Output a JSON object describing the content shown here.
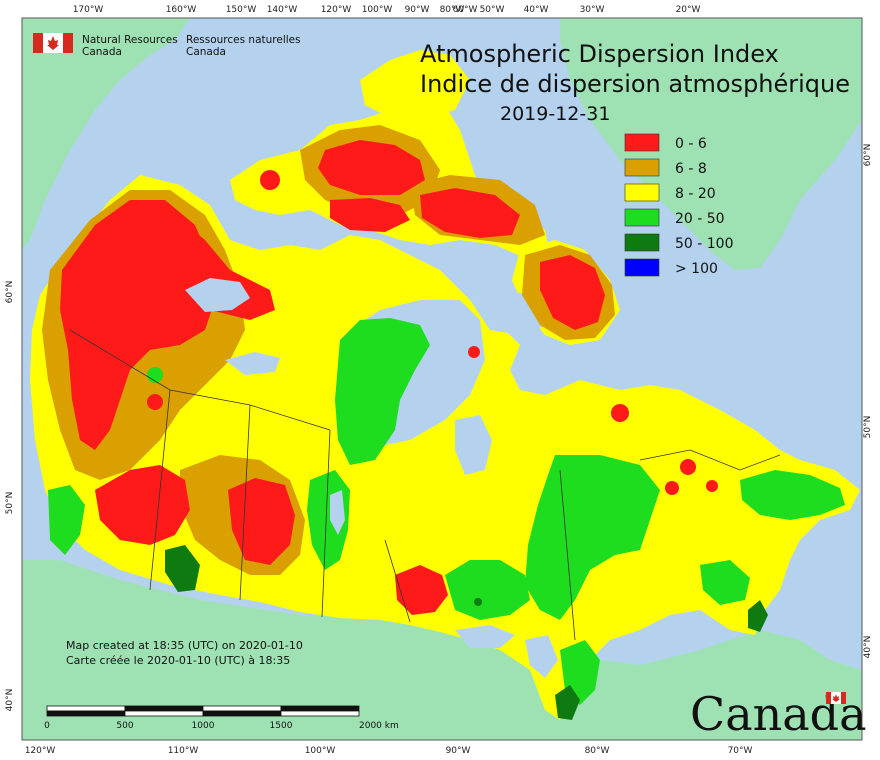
{
  "title": {
    "en": "Atmospheric Dispersion Index",
    "fr": "Indice de dispersion atmosphérique",
    "date": "2019-12-31"
  },
  "agency": {
    "en_line1": "Natural Resources",
    "en_line2": "Canada",
    "fr_line1": "Ressources naturelles",
    "fr_line2": "Canada",
    "wordmark": "Canada"
  },
  "legend": [
    {
      "label": "0 - 6",
      "color": "#ff1a1a"
    },
    {
      "label": "6 - 8",
      "color": "#d9a000"
    },
    {
      "label": "8 - 20",
      "color": "#ffff00"
    },
    {
      "label": "20 - 50",
      "color": "#1edc1e"
    },
    {
      "label": "50 - 100",
      "color": "#0f7a0f"
    },
    {
      "label": "> 100",
      "color": "#0000ff"
    }
  ],
  "credit": {
    "line1": "Map created at 18:35 (UTC) on 2020-01-10",
    "line2": "Carte créée le 2020-01-10 (UTC) à 18:35"
  },
  "scalebar": {
    "ticks": [
      "0",
      "500",
      "1000",
      "1500",
      "2000 km"
    ]
  },
  "graticule": {
    "top": [
      "170°W",
      "160°W",
      "150°W",
      "140°W",
      "120°W",
      "100°W",
      "90°W",
      "80°W",
      "60°W",
      "50°W",
      "40°W",
      "30°W",
      "20°W"
    ],
    "bottom": [
      "120°W",
      "110°W",
      "100°W",
      "90°W",
      "80°W",
      "70°W"
    ],
    "left": [
      "60°N",
      "50°N",
      "40°N"
    ],
    "right": [
      "60°N",
      "50°N",
      "40°N"
    ]
  },
  "colors": {
    "ocean": "#b4d2ee",
    "land_outside": "#9ee2b4",
    "frame": "#555555"
  }
}
